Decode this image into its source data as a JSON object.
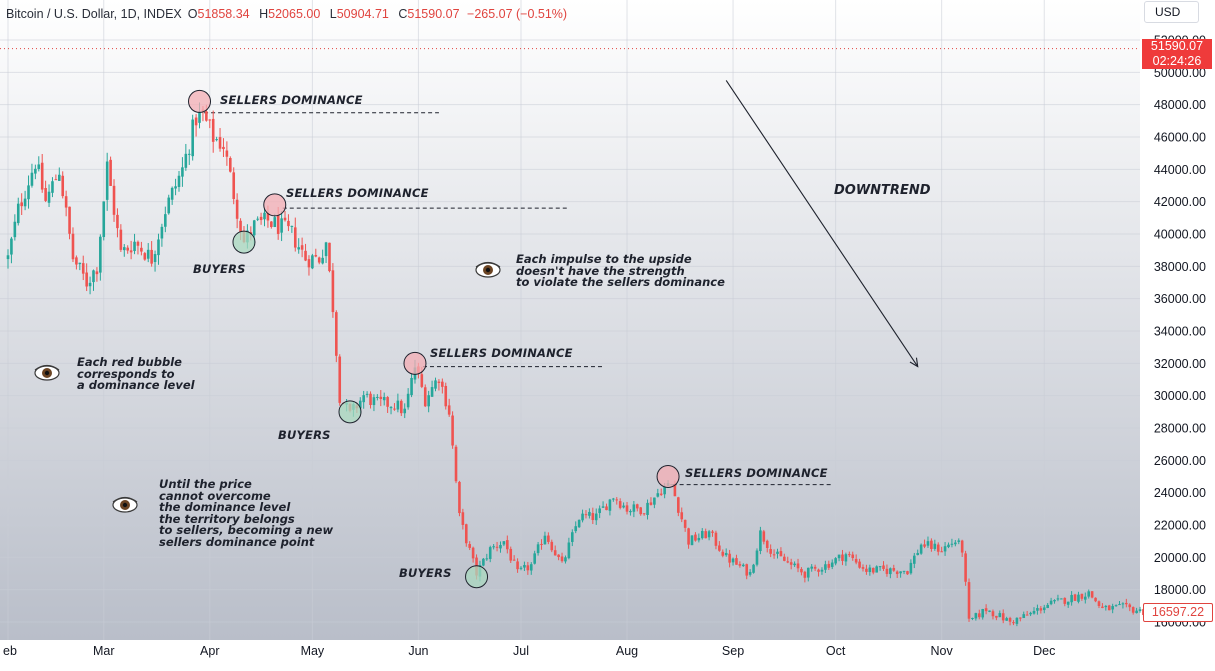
{
  "header": {
    "symbol": "Bitcoin / U.S. Dollar, 1D, INDEX",
    "o_label": "O",
    "o_value": "51858.34",
    "h_label": "H",
    "h_value": "52065.00",
    "l_label": "L",
    "l_value": "50904.71",
    "c_label": "C",
    "c_value": "51590.07",
    "change": "−265.07 (−0.51%)"
  },
  "currency_button": "USD",
  "price_tag": {
    "price": "51590.07",
    "countdown": "02:24:26"
  },
  "last_price_tag": "16597.22",
  "colors": {
    "up": "#26a69a",
    "down": "#ef5350",
    "red_bubble": "#f4aeb4",
    "green_bubble": "#a9d8bf",
    "bg_top": "#ffffff",
    "bg_bottom": "#b9bec9"
  },
  "annotations": {
    "sellers_1": "SELLERS DOMINANCE",
    "sellers_2": "SELLERS DOMINANCE",
    "sellers_3": "SELLERS DOMINANCE",
    "sellers_4": "SELLERS DOMINANCE",
    "buyers_1": "BUYERS",
    "buyers_2": "BUYERS",
    "buyers_3": "BUYERS",
    "downtrend": "DOWNTREND",
    "note_impulse": [
      "Each impulse to the upside",
      "doesn't have the strength",
      "to violate the sellers dominance"
    ],
    "note_bubble": [
      "Each red bubble",
      "corresponds to",
      "a dominance level"
    ],
    "note_price": [
      "Until the price",
      "cannot overcome",
      "the dominance level",
      "the territory belongs",
      "to sellers, becoming a new",
      "sellers dominance point"
    ],
    "eye_icon": "eye-icon"
  },
  "chart_data": {
    "type": "candlestick",
    "y_axis_labels": [
      "52000.00",
      "50000.00",
      "48000.00",
      "46000.00",
      "44000.00",
      "42000.00",
      "40000.00",
      "38000.00",
      "36000.00",
      "34000.00",
      "32000.00",
      "30000.00",
      "28000.00",
      "26000.00",
      "24000.00",
      "22000.00",
      "20000.00",
      "18000.00",
      "16000.00"
    ],
    "ylim": [
      15000,
      53000
    ],
    "x_axis_labels": [
      "eb",
      "Mar",
      "Apr",
      "May",
      "Jun",
      "Jul",
      "Aug",
      "Sep",
      "Oct",
      "Nov",
      "Dec"
    ],
    "x_label_dates": [
      "2022-02-01",
      "2022-03-01",
      "2022-04-01",
      "2022-05-01",
      "2022-06-01",
      "2022-07-01",
      "2022-08-01",
      "2022-09-01",
      "2022-10-01",
      "2022-11-01",
      "2022-12-01"
    ],
    "date_range": [
      "2022-02-01",
      "2022-12-31"
    ],
    "grid": true,
    "price_line": 51590.07,
    "closes": [
      {
        "date": "2022-02-01",
        "price": 38500
      },
      {
        "date": "2022-02-04",
        "price": 41500
      },
      {
        "date": "2022-02-09",
        "price": 44500
      },
      {
        "date": "2022-02-12",
        "price": 42000
      },
      {
        "date": "2022-02-16",
        "price": 44000
      },
      {
        "date": "2022-02-20",
        "price": 38500
      },
      {
        "date": "2022-02-24",
        "price": 37000
      },
      {
        "date": "2022-02-27",
        "price": 38000
      },
      {
        "date": "2022-03-02",
        "price": 44200
      },
      {
        "date": "2022-03-06",
        "price": 38800
      },
      {
        "date": "2022-03-10",
        "price": 39500
      },
      {
        "date": "2022-03-15",
        "price": 38500
      },
      {
        "date": "2022-03-19",
        "price": 41500
      },
      {
        "date": "2022-03-24",
        "price": 44000
      },
      {
        "date": "2022-03-28",
        "price": 47200
      },
      {
        "date": "2022-03-30",
        "price": 47300
      },
      {
        "date": "2022-04-02",
        "price": 46000
      },
      {
        "date": "2022-04-05",
        "price": 45500
      },
      {
        "date": "2022-04-08",
        "price": 42500
      },
      {
        "date": "2022-04-11",
        "price": 39500
      },
      {
        "date": "2022-04-14",
        "price": 40500
      },
      {
        "date": "2022-04-18",
        "price": 40800
      },
      {
        "date": "2022-04-21",
        "price": 40500
      },
      {
        "date": "2022-04-25",
        "price": 40000
      },
      {
        "date": "2022-04-29",
        "price": 38500
      },
      {
        "date": "2022-05-03",
        "price": 38500
      },
      {
        "date": "2022-05-05",
        "price": 39500
      },
      {
        "date": "2022-05-07",
        "price": 35500
      },
      {
        "date": "2022-05-09",
        "price": 30000
      },
      {
        "date": "2022-05-12",
        "price": 28800
      },
      {
        "date": "2022-05-16",
        "price": 30000
      },
      {
        "date": "2022-05-20",
        "price": 29500
      },
      {
        "date": "2022-05-25",
        "price": 29500
      },
      {
        "date": "2022-05-28",
        "price": 29000
      },
      {
        "date": "2022-05-31",
        "price": 31800
      },
      {
        "date": "2022-06-03",
        "price": 29800
      },
      {
        "date": "2022-06-07",
        "price": 31200
      },
      {
        "date": "2022-06-10",
        "price": 29000
      },
      {
        "date": "2022-06-13",
        "price": 22500
      },
      {
        "date": "2022-06-18",
        "price": 19000
      },
      {
        "date": "2022-06-22",
        "price": 20500
      },
      {
        "date": "2022-06-26",
        "price": 21000
      },
      {
        "date": "2022-06-30",
        "price": 19000
      },
      {
        "date": "2022-07-04",
        "price": 19500
      },
      {
        "date": "2022-07-08",
        "price": 21500
      },
      {
        "date": "2022-07-13",
        "price": 19500
      },
      {
        "date": "2022-07-18",
        "price": 22500
      },
      {
        "date": "2022-07-23",
        "price": 22500
      },
      {
        "date": "2022-07-28",
        "price": 23800
      },
      {
        "date": "2022-08-01",
        "price": 23000
      },
      {
        "date": "2022-08-06",
        "price": 23000
      },
      {
        "date": "2022-08-11",
        "price": 24200
      },
      {
        "date": "2022-08-14",
        "price": 24500
      },
      {
        "date": "2022-08-19",
        "price": 21000
      },
      {
        "date": "2022-08-25",
        "price": 21500
      },
      {
        "date": "2022-08-30",
        "price": 20000
      },
      {
        "date": "2022-09-06",
        "price": 19000
      },
      {
        "date": "2022-09-09",
        "price": 21500
      },
      {
        "date": "2022-09-13",
        "price": 20200
      },
      {
        "date": "2022-09-18",
        "price": 19500
      },
      {
        "date": "2022-09-22",
        "price": 19000
      },
      {
        "date": "2022-09-28",
        "price": 19500
      },
      {
        "date": "2022-10-04",
        "price": 20200
      },
      {
        "date": "2022-10-10",
        "price": 19200
      },
      {
        "date": "2022-10-16",
        "price": 19200
      },
      {
        "date": "2022-10-22",
        "price": 19200
      },
      {
        "date": "2022-10-26",
        "price": 20800
      },
      {
        "date": "2022-11-01",
        "price": 20500
      },
      {
        "date": "2022-11-05",
        "price": 21000
      },
      {
        "date": "2022-11-07",
        "price": 20500
      },
      {
        "date": "2022-11-09",
        "price": 16000
      },
      {
        "date": "2022-11-14",
        "price": 16800
      },
      {
        "date": "2022-11-21",
        "price": 16000
      },
      {
        "date": "2022-11-27",
        "price": 16500
      },
      {
        "date": "2022-12-01",
        "price": 17000
      },
      {
        "date": "2022-12-14",
        "price": 17800
      },
      {
        "date": "2022-12-18",
        "price": 16800
      },
      {
        "date": "2022-12-24",
        "price": 16900
      },
      {
        "date": "2022-12-31",
        "price": 16600
      }
    ],
    "dominance_levels": [
      {
        "label": "SELLERS DOMINANCE",
        "price": 47500,
        "from": "2022-03-28",
        "to": "2022-06-07"
      },
      {
        "label": "SELLERS DOMINANCE",
        "price": 41600,
        "from": "2022-04-20",
        "to": "2022-07-15"
      },
      {
        "label": "SELLERS DOMINANCE",
        "price": 31800,
        "from": "2022-05-31",
        "to": "2022-07-25"
      },
      {
        "label": "SELLERS DOMINANCE",
        "price": 24500,
        "from": "2022-08-12",
        "to": "2022-09-30"
      }
    ],
    "red_bubbles": [
      {
        "date": "2022-03-29",
        "price": 48200
      },
      {
        "date": "2022-04-20",
        "price": 41800
      },
      {
        "date": "2022-05-31",
        "price": 32000
      },
      {
        "date": "2022-08-13",
        "price": 25000
      }
    ],
    "green_bubbles": [
      {
        "date": "2022-04-11",
        "price": 39500
      },
      {
        "date": "2022-05-12",
        "price": 29000
      },
      {
        "date": "2022-06-18",
        "price": 18800
      }
    ],
    "trend_arrow": {
      "from": {
        "date": "2022-08-30",
        "price": 49500
      },
      "to": {
        "date": "2022-10-25",
        "price": 31800
      }
    }
  }
}
